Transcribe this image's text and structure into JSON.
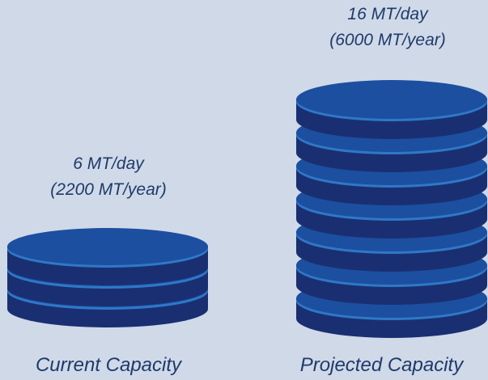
{
  "colors": {
    "background": "#cfd9e8",
    "disk_top": "#1c4fa0",
    "disk_side": "#1a2f72",
    "disk_edge": "#2f78c7",
    "text": "#1f3a6a"
  },
  "current": {
    "daily": "6 MT/day",
    "yearly": "(2200 MT/year)",
    "caption": "Current Capacity",
    "disk_count": 3
  },
  "projected": {
    "daily": "16 MT/day",
    "yearly": "(6000 MT/year)",
    "caption": "Projected Capacity",
    "disk_count": 7
  }
}
